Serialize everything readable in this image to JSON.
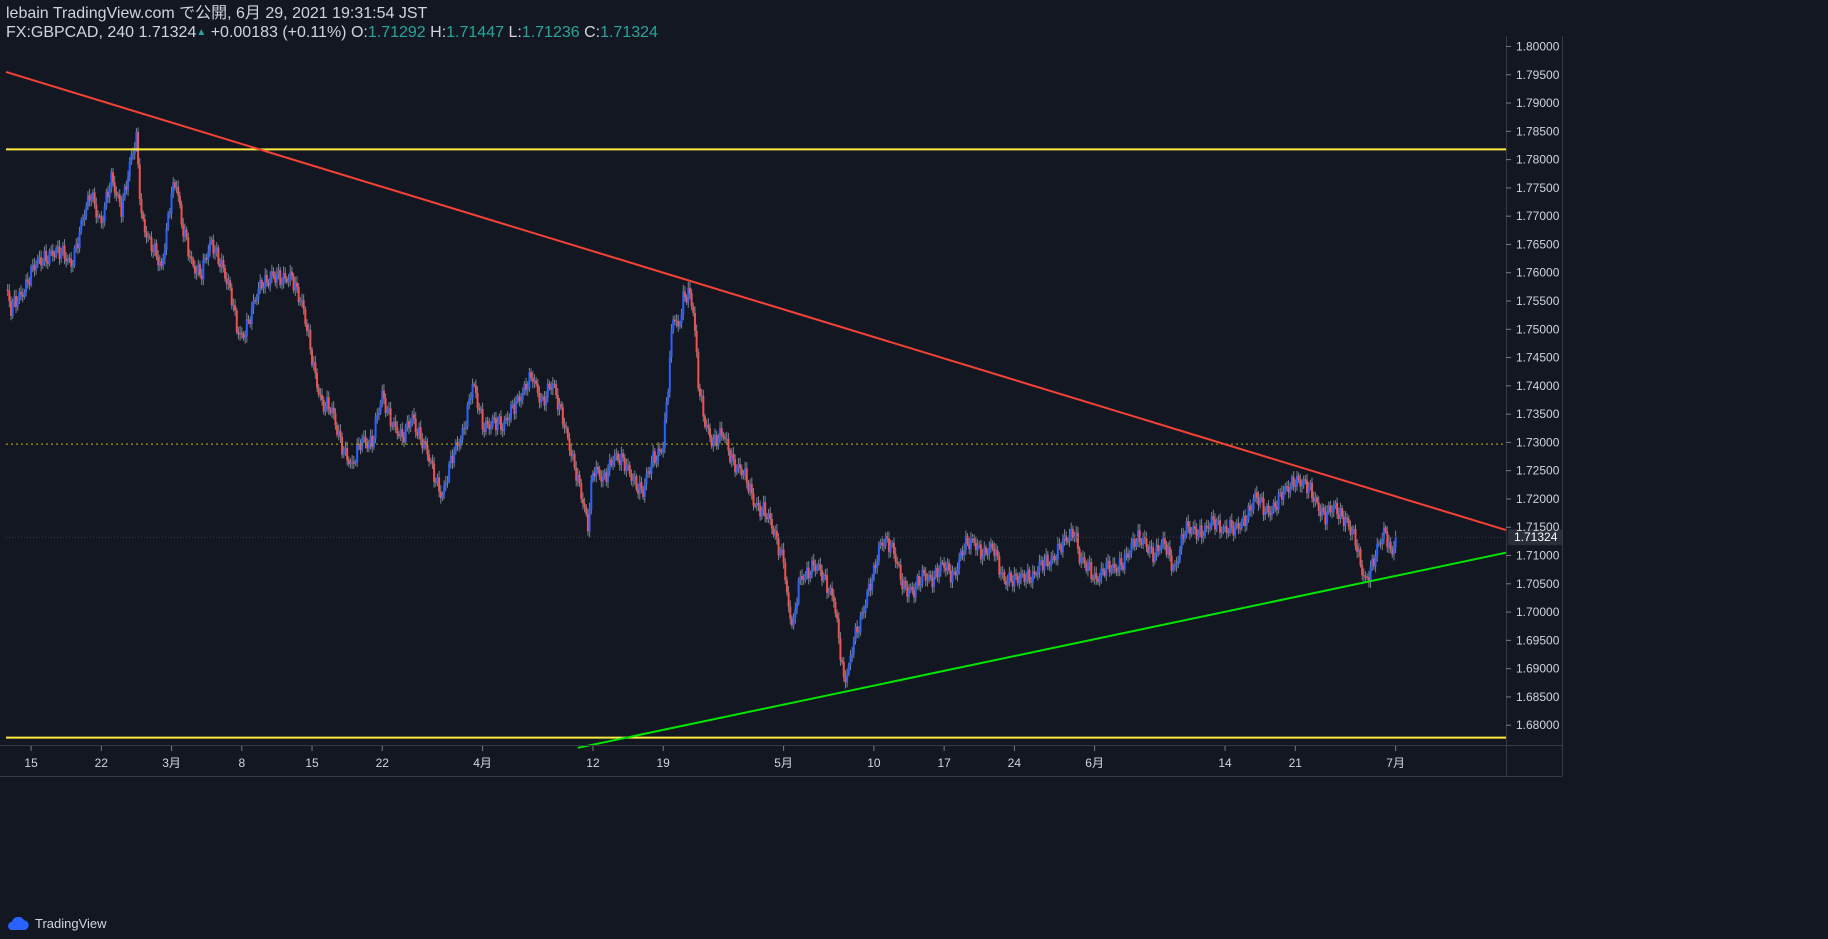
{
  "header": {
    "line1": "lebain TradingView.com で公開, 6月 29, 2021 19:31:54 JST",
    "symbol": "FX:GBPCAD, 240",
    "last": "1.71324",
    "arrow": "▲",
    "change": "+0.00183 (+0.11%)",
    "o_label": "O:",
    "o": "1.71292",
    "h_label": "H:",
    "h": "1.71447",
    "l_label": "L:",
    "l": "1.71236",
    "c_label": "C:",
    "c": "1.71324"
  },
  "brand": {
    "name": "TradingView"
  },
  "colors": {
    "bg": "#131722",
    "up": "#2962ff",
    "down": "#ef5350",
    "wick": "#8a93a6",
    "axis_text": "#d1d4dc",
    "resistance": "#f44336",
    "support": "#00e600",
    "horizontal": "#ffeb3b",
    "dotted": "#c8b400",
    "badge": "#2a2e39"
  },
  "chart_data": {
    "type": "candlestick",
    "title": "FX:GBPCAD, 240",
    "ylim": [
      1.6765,
      1.8015
    ],
    "y_ticks": [
      "1.80000",
      "1.79500",
      "1.79000",
      "1.78500",
      "1.78000",
      "1.77500",
      "1.77000",
      "1.76500",
      "1.76000",
      "1.75500",
      "1.75000",
      "1.74500",
      "1.74000",
      "1.73500",
      "1.73000",
      "1.72500",
      "1.72000",
      "1.71500",
      "1.71000",
      "1.70500",
      "1.70000",
      "1.69500",
      "1.69000",
      "1.68500",
      "1.68000"
    ],
    "x_ticks": [
      {
        "label": "15",
        "day": 0
      },
      {
        "label": "22",
        "day": 7
      },
      {
        "label": "3月",
        "day": 14
      },
      {
        "label": "8",
        "day": 21
      },
      {
        "label": "15",
        "day": 28
      },
      {
        "label": "22",
        "day": 35
      },
      {
        "label": "4月",
        "day": 45
      },
      {
        "label": "12",
        "day": 56
      },
      {
        "label": "19",
        "day": 63
      },
      {
        "label": "5月",
        "day": 75
      },
      {
        "label": "10",
        "day": 84
      },
      {
        "label": "17",
        "day": 91
      },
      {
        "label": "24",
        "day": 98
      },
      {
        "label": "6月",
        "day": 106
      },
      {
        "label": "14",
        "day": 119
      },
      {
        "label": "21",
        "day": 126
      },
      {
        "label": "7月",
        "day": 136
      }
    ],
    "x_range_days": [
      -2.5,
      147
    ],
    "last_price": "1.71324",
    "price_path": [
      [
        -2.5,
        1.757
      ],
      [
        -2,
        1.753
      ],
      [
        0,
        1.76
      ],
      [
        2,
        1.764
      ],
      [
        4,
        1.762
      ],
      [
        5,
        1.768
      ],
      [
        6,
        1.774
      ],
      [
        7,
        1.769
      ],
      [
        8,
        1.776
      ],
      [
        9,
        1.772
      ],
      [
        10,
        1.78
      ],
      [
        10.5,
        1.783
      ],
      [
        11,
        1.77
      ],
      [
        12,
        1.765
      ],
      [
        13,
        1.76
      ],
      [
        14,
        1.775
      ],
      [
        14.5,
        1.776
      ],
      [
        15,
        1.768
      ],
      [
        16,
        1.762
      ],
      [
        17,
        1.76
      ],
      [
        18,
        1.765
      ],
      [
        19,
        1.762
      ],
      [
        20,
        1.755
      ],
      [
        20.5,
        1.75
      ],
      [
        21,
        1.749
      ],
      [
        22,
        1.753
      ],
      [
        23,
        1.758
      ],
      [
        24,
        1.76
      ],
      [
        25,
        1.758
      ],
      [
        26,
        1.76
      ],
      [
        27,
        1.754
      ],
      [
        28,
        1.745
      ],
      [
        29,
        1.737
      ],
      [
        30,
        1.735
      ],
      [
        31,
        1.73
      ],
      [
        32,
        1.725
      ],
      [
        33,
        1.731
      ],
      [
        34,
        1.73
      ],
      [
        35,
        1.738
      ],
      [
        36,
        1.734
      ],
      [
        37,
        1.73
      ],
      [
        38,
        1.735
      ],
      [
        39,
        1.73
      ],
      [
        40,
        1.725
      ],
      [
        41,
        1.721
      ],
      [
        42,
        1.727
      ],
      [
        43,
        1.732
      ],
      [
        44,
        1.74
      ],
      [
        45,
        1.733
      ],
      [
        46,
        1.734
      ],
      [
        47,
        1.732
      ],
      [
        48,
        1.737
      ],
      [
        49,
        1.738
      ],
      [
        50,
        1.742
      ],
      [
        51,
        1.737
      ],
      [
        52,
        1.74
      ],
      [
        53,
        1.735
      ],
      [
        54,
        1.726
      ],
      [
        55,
        1.72
      ],
      [
        55.5,
        1.716
      ],
      [
        56,
        1.725
      ],
      [
        57,
        1.723
      ],
      [
        58,
        1.728
      ],
      [
        59,
        1.726
      ],
      [
        60,
        1.724
      ],
      [
        61,
        1.721
      ],
      [
        62,
        1.727
      ],
      [
        63,
        1.73
      ],
      [
        63.5,
        1.74
      ],
      [
        64,
        1.752
      ],
      [
        64.5,
        1.75
      ],
      [
        65,
        1.756
      ],
      [
        65.5,
        1.757
      ],
      [
        66,
        1.753
      ],
      [
        66.5,
        1.74
      ],
      [
        67,
        1.735
      ],
      [
        68,
        1.73
      ],
      [
        69,
        1.731
      ],
      [
        70,
        1.727
      ],
      [
        71,
        1.724
      ],
      [
        72,
        1.72
      ],
      [
        73,
        1.718
      ],
      [
        74,
        1.714
      ],
      [
        75,
        1.71
      ],
      [
        75.5,
        1.7
      ],
      [
        76,
        1.697
      ],
      [
        76.5,
        1.705
      ],
      [
        77,
        1.707
      ],
      [
        78,
        1.708
      ],
      [
        79,
        1.706
      ],
      [
        80,
        1.703
      ],
      [
        80.5,
        1.695
      ],
      [
        81,
        1.687
      ],
      [
        81.5,
        1.69
      ],
      [
        82,
        1.696
      ],
      [
        83,
        1.7
      ],
      [
        84,
        1.707
      ],
      [
        84.5,
        1.712
      ],
      [
        85,
        1.713
      ],
      [
        86,
        1.71
      ],
      [
        87,
        1.705
      ],
      [
        88,
        1.703
      ],
      [
        89,
        1.707
      ],
      [
        90,
        1.706
      ],
      [
        91,
        1.708
      ],
      [
        92,
        1.707
      ],
      [
        93,
        1.711
      ],
      [
        94,
        1.713
      ],
      [
        95,
        1.71
      ],
      [
        96,
        1.711
      ],
      [
        97,
        1.706
      ],
      [
        98,
        1.705
      ],
      [
        99,
        1.707
      ],
      [
        100,
        1.706
      ],
      [
        101,
        1.709
      ],
      [
        102,
        1.71
      ],
      [
        103,
        1.712
      ],
      [
        104,
        1.715
      ],
      [
        104.5,
        1.71
      ],
      [
        105,
        1.708
      ],
      [
        106,
        1.706
      ],
      [
        107,
        1.708
      ],
      [
        108,
        1.707
      ],
      [
        109,
        1.71
      ],
      [
        110,
        1.712
      ],
      [
        111,
        1.713
      ],
      [
        112,
        1.71
      ],
      [
        113,
        1.712
      ],
      [
        114,
        1.708
      ],
      [
        115,
        1.714
      ],
      [
        116,
        1.715
      ],
      [
        117,
        1.714
      ],
      [
        118,
        1.716
      ],
      [
        119,
        1.715
      ],
      [
        120,
        1.714
      ],
      [
        121,
        1.717
      ],
      [
        122,
        1.72
      ],
      [
        123,
        1.718
      ],
      [
        124,
        1.719
      ],
      [
        125,
        1.721
      ],
      [
        126,
        1.724
      ],
      [
        127,
        1.722
      ],
      [
        128,
        1.72
      ],
      [
        129,
        1.717
      ],
      [
        130,
        1.718
      ],
      [
        131,
        1.717
      ],
      [
        132,
        1.712
      ],
      [
        132.5,
        1.708
      ],
      [
        133,
        1.706
      ],
      [
        134,
        1.71
      ],
      [
        135,
        1.714
      ],
      [
        135.5,
        1.711
      ],
      [
        136,
        1.7132
      ]
    ],
    "trend_lines": [
      {
        "name": "resistance",
        "from": [
          -2.5,
          1.7955
        ],
        "to": [
          147,
          1.7145
        ]
      },
      {
        "name": "support",
        "from": [
          54.5,
          1.676
        ],
        "to": [
          147,
          1.7105
        ]
      }
    ],
    "horizontal_lines": [
      {
        "name": "upper-level",
        "price": 1.7818
      },
      {
        "name": "lower-level",
        "price": 1.6778
      },
      {
        "name": "dotted-level",
        "price": 1.7297
      }
    ]
  }
}
